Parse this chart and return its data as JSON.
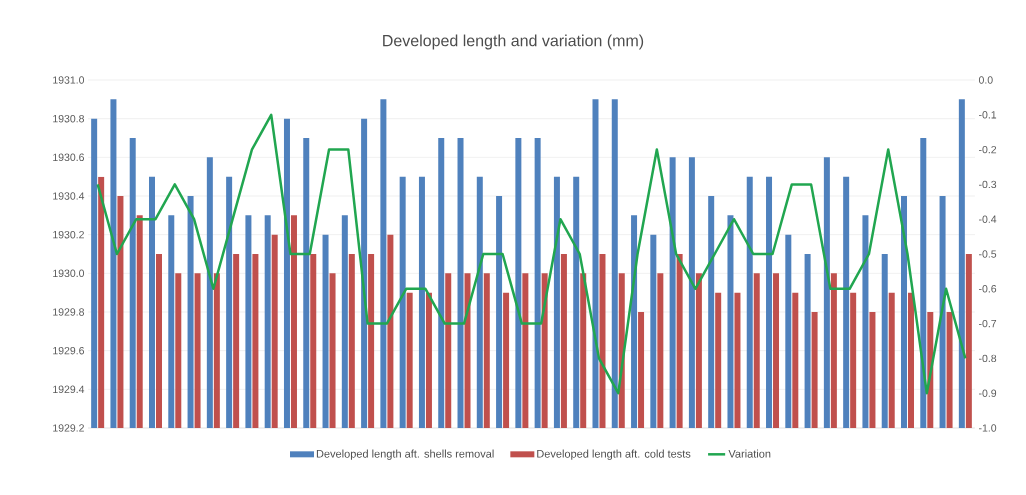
{
  "chart_data": {
    "type": "bar",
    "title": "Developed length and variation (mm)",
    "categories": [
      null,
      null,
      null,
      null,
      null,
      null,
      null,
      null,
      null,
      null,
      null,
      null,
      null,
      null,
      null,
      null,
      null,
      null,
      null,
      null,
      null,
      null,
      null,
      null,
      null,
      null,
      null,
      null,
      null,
      null,
      null,
      null,
      null,
      null,
      null,
      null,
      null,
      null,
      null,
      null,
      null,
      null,
      null,
      null,
      null,
      null
    ],
    "series": [
      {
        "name": "Developed length aft. shells removal",
        "color": "#4f81bd",
        "values": [
          1930.8,
          1930.9,
          1930.7,
          1930.5,
          1930.3,
          1930.4,
          1930.6,
          1930.5,
          1930.3,
          1930.3,
          1930.8,
          1930.7,
          1930.2,
          1930.3,
          1930.8,
          1930.9,
          1930.5,
          1930.5,
          1930.7,
          1930.7,
          1930.5,
          1930.4,
          1930.7,
          1930.7,
          1930.5,
          1930.5,
          1930.9,
          1930.9,
          1930.3,
          1930.2,
          1930.6,
          1930.6,
          1930.4,
          1930.3,
          1930.5,
          1930.5,
          1930.2,
          1930.1,
          1930.6,
          1930.5,
          1930.3,
          1930.1,
          1930.4,
          1930.7,
          1930.4,
          1930.9
        ]
      },
      {
        "name": "Developed length aft. cold tests",
        "color": "#c0504d",
        "values": [
          1930.5,
          1930.4,
          1930.3,
          1930.1,
          1930.0,
          1930.0,
          1930.0,
          1930.1,
          1930.1,
          1930.2,
          1930.3,
          1930.1,
          1930.0,
          1930.1,
          1930.1,
          1930.2,
          1929.9,
          1929.9,
          1930.0,
          1930.0,
          1930.0,
          1929.9,
          1930.0,
          1930.0,
          1930.1,
          1930.0,
          1930.1,
          1930.0,
          1929.8,
          1930.0,
          1930.1,
          1930.0,
          1929.9,
          1929.9,
          1930.0,
          1930.0,
          1929.9,
          1929.8,
          1930.0,
          1929.9,
          1929.8,
          1929.9,
          1929.9,
          1929.8,
          1929.8,
          1930.1
        ]
      },
      {
        "name": "Variation",
        "type": "line",
        "axis": "y2",
        "color": "#21a650",
        "values": [
          -0.3,
          -0.5,
          -0.4,
          -0.4,
          -0.3,
          -0.4,
          -0.6,
          -0.4,
          -0.2,
          -0.1,
          -0.5,
          -0.5,
          -0.2,
          -0.2,
          -0.7,
          -0.7,
          -0.6,
          -0.6,
          -0.7,
          -0.7,
          -0.5,
          -0.5,
          -0.7,
          -0.7,
          -0.4,
          -0.5,
          -0.8,
          -0.9,
          -0.5,
          -0.2,
          -0.5,
          -0.6,
          -0.5,
          -0.4,
          -0.5,
          -0.5,
          -0.3,
          -0.3,
          -0.6,
          -0.6,
          -0.5,
          -0.2,
          -0.5,
          -0.9,
          -0.6,
          -0.8
        ]
      }
    ],
    "ylim": [
      1929.2,
      1931.0
    ],
    "yticks": [
      {
        "value": 1929.2,
        "label": "1929.2"
      },
      {
        "value": 1929.4,
        "label": "1929.4"
      },
      {
        "value": 1929.6,
        "label": "1929.6"
      },
      {
        "value": 1929.8,
        "label": "1929.8"
      },
      {
        "value": 1930.0,
        "label": "1930.0"
      },
      {
        "value": 1930.2,
        "label": "1930.2"
      },
      {
        "value": 1930.4,
        "label": "1930.4"
      },
      {
        "value": 1930.6,
        "label": "1930.6"
      },
      {
        "value": 1930.8,
        "label": "1930.8"
      },
      {
        "value": 1931.0,
        "label": "1931.0"
      }
    ],
    "y2lim": [
      -1.0,
      0.0
    ],
    "y2ticks": [
      {
        "value": -1.0,
        "label": "-1.0"
      },
      {
        "value": -0.9,
        "label": "-0.9"
      },
      {
        "value": -0.8,
        "label": "-0.8"
      },
      {
        "value": -0.7,
        "label": "-0.7"
      },
      {
        "value": -0.6,
        "label": "-0.6"
      },
      {
        "value": -0.5,
        "label": "-0.5"
      },
      {
        "value": -0.4,
        "label": "-0.4"
      },
      {
        "value": -0.3,
        "label": "-0.3"
      },
      {
        "value": -0.2,
        "label": "-0.2"
      },
      {
        "value": -0.1,
        "label": "-0.1"
      },
      {
        "value": 0.0,
        "label": "0.0"
      }
    ],
    "grid": "y",
    "legend": "bottom"
  }
}
